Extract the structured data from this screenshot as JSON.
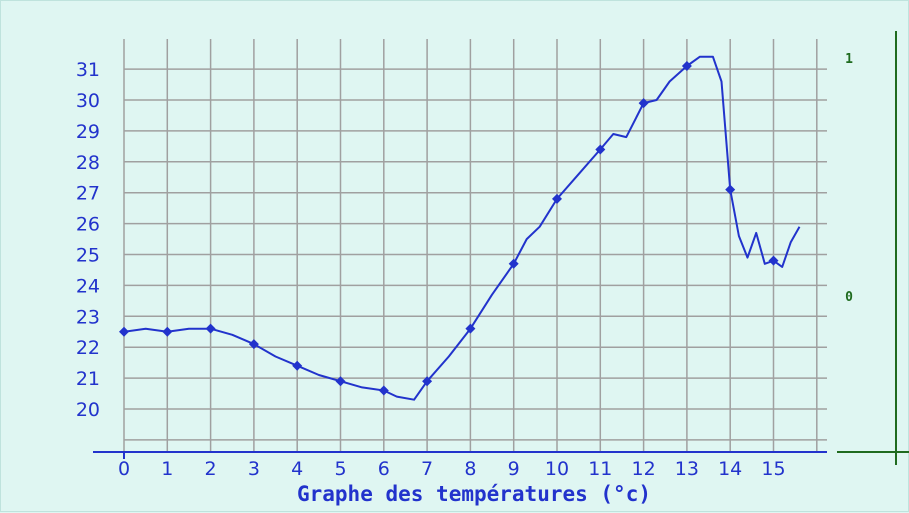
{
  "chart_data": {
    "type": "line",
    "title": "Graphe des températures (°c)",
    "xlabel": "",
    "ylabel": "",
    "xlim": [
      0,
      16
    ],
    "ylim": [
      19,
      32
    ],
    "x_ticks": [
      "0",
      "1",
      "2",
      "3",
      "4",
      "5",
      "6",
      "7",
      "8",
      "9",
      "10",
      "11",
      "12",
      "13",
      "14",
      "15"
    ],
    "y_ticks": [
      "20",
      "21",
      "22",
      "23",
      "24",
      "25",
      "26",
      "27",
      "28",
      "29",
      "30",
      "31"
    ],
    "right_axis_ticks": [
      "1",
      "0"
    ],
    "grid": true,
    "line_color": "#2233cc",
    "grid_color": "#a0a0a0",
    "axis_color": "#2233cc",
    "right_axis_color": "#1f6b1f",
    "series": [
      {
        "markers": [
          [
            0,
            22.5
          ],
          [
            1,
            22.5
          ],
          [
            2,
            22.6
          ],
          [
            3,
            22.1
          ],
          [
            4,
            21.4
          ],
          [
            5,
            20.9
          ],
          [
            6,
            20.6
          ],
          [
            7,
            20.9
          ],
          [
            8,
            22.6
          ],
          [
            9,
            24.7
          ],
          [
            10,
            26.8
          ],
          [
            11,
            28.4
          ],
          [
            12,
            29.9
          ],
          [
            13,
            31.1
          ],
          [
            14,
            27.1
          ],
          [
            15,
            24.8
          ]
        ],
        "values": [
          [
            0,
            22.5
          ],
          [
            0.5,
            22.6
          ],
          [
            1,
            22.5
          ],
          [
            1.5,
            22.6
          ],
          [
            2,
            22.6
          ],
          [
            2.5,
            22.4
          ],
          [
            3,
            22.1
          ],
          [
            3.5,
            21.7
          ],
          [
            4,
            21.4
          ],
          [
            4.5,
            21.1
          ],
          [
            5,
            20.9
          ],
          [
            5.5,
            20.7
          ],
          [
            6,
            20.6
          ],
          [
            6.3,
            20.4
          ],
          [
            6.7,
            20.3
          ],
          [
            7,
            20.9
          ],
          [
            7.5,
            21.7
          ],
          [
            8,
            22.6
          ],
          [
            8.5,
            23.7
          ],
          [
            9,
            24.7
          ],
          [
            9.3,
            25.5
          ],
          [
            9.6,
            25.9
          ],
          [
            10,
            26.8
          ],
          [
            10.5,
            27.6
          ],
          [
            11,
            28.4
          ],
          [
            11.3,
            28.9
          ],
          [
            11.6,
            28.8
          ],
          [
            12,
            29.9
          ],
          [
            12.3,
            30.0
          ],
          [
            12.6,
            30.6
          ],
          [
            13,
            31.1
          ],
          [
            13.3,
            31.4
          ],
          [
            13.6,
            31.4
          ],
          [
            13.8,
            30.6
          ],
          [
            14,
            27.1
          ],
          [
            14.2,
            25.6
          ],
          [
            14.4,
            24.9
          ],
          [
            14.6,
            25.7
          ],
          [
            14.8,
            24.7
          ],
          [
            15,
            24.8
          ],
          [
            15.2,
            24.6
          ],
          [
            15.4,
            25.4
          ],
          [
            15.6,
            25.9
          ]
        ]
      }
    ]
  }
}
